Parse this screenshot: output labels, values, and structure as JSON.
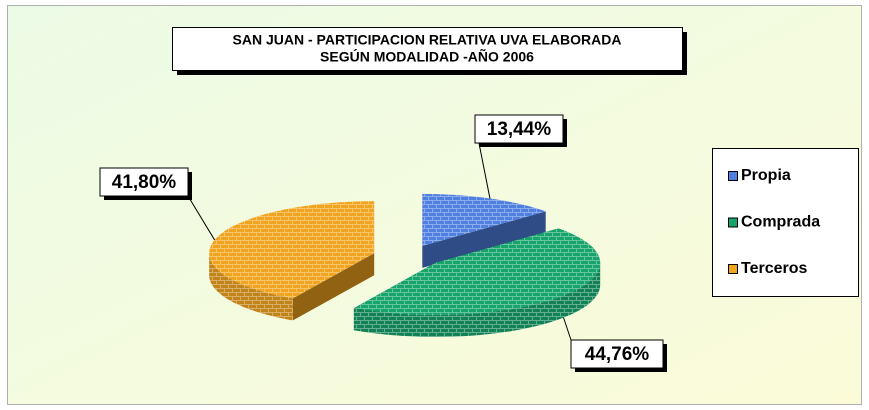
{
  "chart_data": {
    "type": "pie",
    "title": [
      "SAN JUAN - PARTICIPACION RELATIVA UVA ELABORADA",
      "SEGÚN MODALIDAD -AÑO 2006"
    ],
    "categories": [
      "Propia",
      "Comprada",
      "Terceros"
    ],
    "values": [
      13.44,
      44.76,
      41.8
    ],
    "value_labels": [
      "13,44%",
      "44,76%",
      "41,80%"
    ],
    "colors": [
      "#4f7fe0",
      "#17a36c",
      "#f2a41e"
    ],
    "legend": "right"
  }
}
